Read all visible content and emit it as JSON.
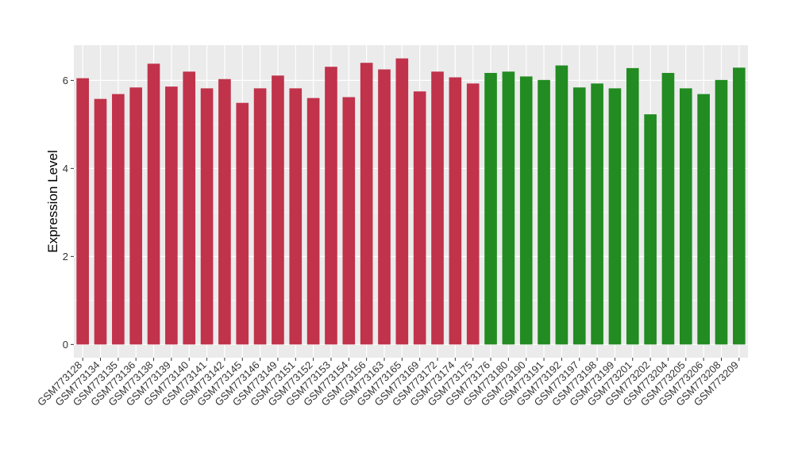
{
  "chart_data": {
    "type": "bar",
    "title": "",
    "xlabel": "",
    "ylabel": "Expression Level",
    "ylim": [
      -0.3,
      6.8
    ],
    "yticks": [
      0,
      2,
      4,
      6
    ],
    "grid": true,
    "background": "#ebebeb",
    "gridline_color": "#ffffff",
    "categories": [
      "GSM773128",
      "GSM773134",
      "GSM773135",
      "GSM773136",
      "GSM773138",
      "GSM773139",
      "GSM773140",
      "GSM773141",
      "GSM773142",
      "GSM773145",
      "GSM773146",
      "GSM773149",
      "GSM773151",
      "GSM773152",
      "GSM773153",
      "GSM773154",
      "GSM773156",
      "GSM773163",
      "GSM773165",
      "GSM773169",
      "GSM773172",
      "GSM773174",
      "GSM773175",
      "GSM773176",
      "GSM773180",
      "GSM773190",
      "GSM773191",
      "GSM773192",
      "GSM773197",
      "GSM773198",
      "GSM773199",
      "GSM773201",
      "GSM773202",
      "GSM773204",
      "GSM773205",
      "GSM773206",
      "GSM773208",
      "GSM773209"
    ],
    "values": [
      6.05,
      5.58,
      5.69,
      5.84,
      6.38,
      5.86,
      6.2,
      5.82,
      6.03,
      5.49,
      5.82,
      6.11,
      5.82,
      5.6,
      6.31,
      5.62,
      6.4,
      6.25,
      6.5,
      5.75,
      6.2,
      6.07,
      5.93,
      6.17,
      6.2,
      6.09,
      6.01,
      6.34,
      5.84,
      5.93,
      5.82,
      6.28,
      5.23,
      6.17,
      5.82,
      5.69,
      6.01,
      6.29
    ],
    "groups": [
      "a",
      "a",
      "a",
      "a",
      "a",
      "a",
      "a",
      "a",
      "a",
      "a",
      "a",
      "a",
      "a",
      "a",
      "a",
      "a",
      "a",
      "a",
      "a",
      "a",
      "a",
      "a",
      "a",
      "b",
      "b",
      "b",
      "b",
      "b",
      "b",
      "b",
      "b",
      "b",
      "b",
      "b",
      "b",
      "b",
      "b",
      "b"
    ],
    "group_colors": {
      "a": "#c0334b",
      "b": "#228b22"
    }
  }
}
